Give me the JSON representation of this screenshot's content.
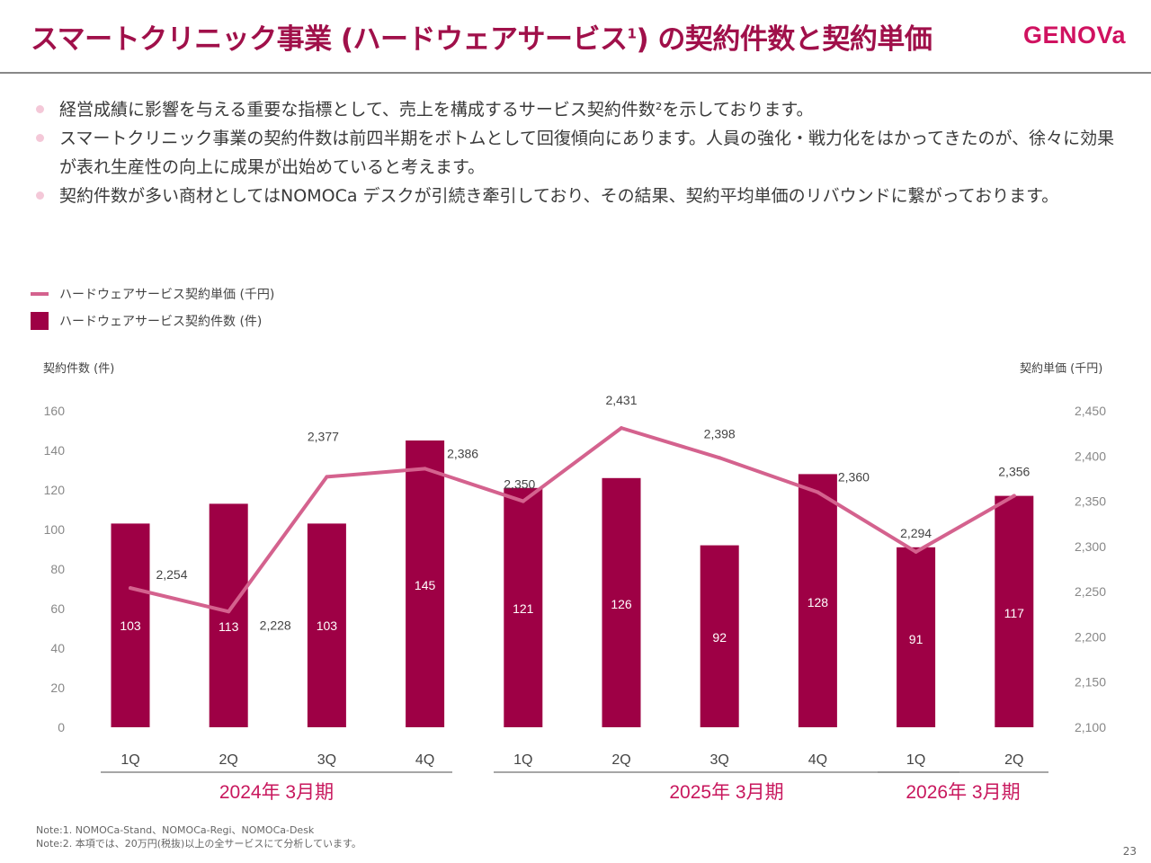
{
  "header": {
    "title": "スマートクリニック事業 (ハードウェアサービス",
    "title_sup": "1",
    "title_suffix": ") の契約件数と契約単価",
    "logo": "GENOVa"
  },
  "bullets": [
    "経営成績に影響を与える重要な指標として、売上を構成するサービス契約件数²を示しております。",
    "スマートクリニック事業の契約件数は前四半期をボトムとして回復傾向にあります。人員の強化・戦力化をはかってきたのが、徐々に効果が表れ生産性の向上に成果が出始めていると考えます。",
    "契約件数が多い商材としてはNOMOCa デスクが引続き牽引しており、その結果、契約平均単価のリバウンドに繋がっております。"
  ],
  "legend": {
    "line_label": "ハードウェアサービス契約単価 (千円)",
    "bar_label": "ハードウェアサービス契約件数 (件)"
  },
  "colors": {
    "bar": "#9e0045",
    "line": "#d4628e",
    "accent": "#c8175d",
    "title": "#a0104a"
  },
  "chart_data": {
    "type": "bar",
    "title": "",
    "categories": [
      "1Q",
      "2Q",
      "3Q",
      "4Q",
      "1Q",
      "2Q",
      "3Q",
      "4Q",
      "1Q",
      "2Q"
    ],
    "groups": [
      {
        "label": "2024年 3月期",
        "count": 4
      },
      {
        "label": "2025年 3月期",
        "count": 4
      },
      {
        "label": "2026年 3月期",
        "count": 2
      }
    ],
    "series": [
      {
        "name": "ハードウェアサービス契約件数 (件)",
        "type": "bar",
        "axis": "left",
        "values": [
          103,
          113,
          103,
          145,
          121,
          126,
          92,
          128,
          91,
          117
        ]
      },
      {
        "name": "ハードウェアサービス契約単価 (千円)",
        "type": "line",
        "axis": "right",
        "values": [
          2254,
          2228,
          2377,
          2386,
          2350,
          2431,
          2398,
          2360,
          2294,
          2356
        ]
      }
    ],
    "line_labels": [
      "2,254",
      "2,228",
      "2,377",
      "2,386",
      "2,350",
      "2,431",
      "2,398",
      "2,360",
      "2,294",
      "2,356"
    ],
    "ylabel_left": "契約件数 (件)",
    "ylabel_right": "契約単価 (千円)",
    "ylim_left": [
      0,
      160
    ],
    "yticks_left": [
      "0",
      "20",
      "40",
      "60",
      "80",
      "100",
      "120",
      "140",
      "160"
    ],
    "ylim_right": [
      2100,
      2450
    ],
    "yticks_right": [
      "2,100",
      "2,150",
      "2,200",
      "2,250",
      "2,300",
      "2,350",
      "2,400",
      "2,450"
    ],
    "grid": false,
    "legend_position": "top-left"
  },
  "notes": [
    "Note:1. NOMOCa-Stand、NOMOCa-Regi、NOMOCa-Desk",
    "Note:2. 本項では、20万円(税抜)以上の全サービスにて分析しています。"
  ],
  "page_number": "23"
}
